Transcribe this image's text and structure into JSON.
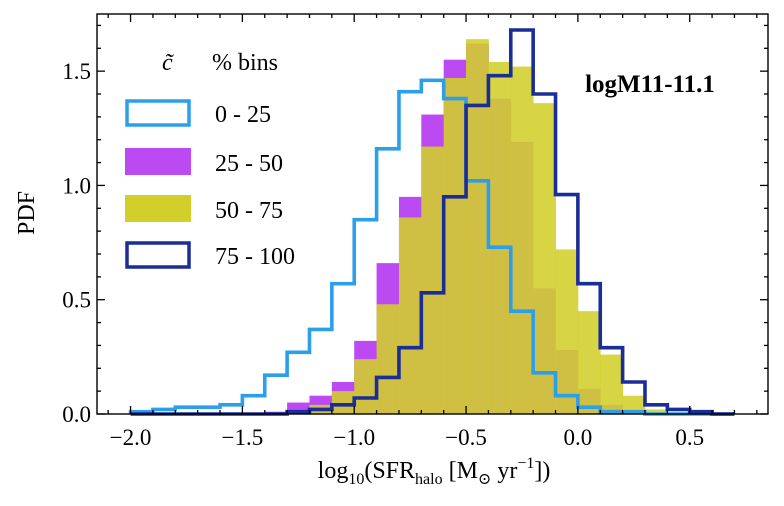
{
  "chart_data": {
    "type": "histogram-step",
    "title": "",
    "xlabel": "log10(SFRhalo [M⊙ yr−1])",
    "xlabel_parts": {
      "prefix": "log",
      "sub10": "10",
      "open": "(SFR",
      "sub_halo": "halo",
      "mid": " [M",
      "sun": "⊙",
      "unit": " yr",
      "exp": "−1",
      "close": "])"
    },
    "ylabel": "PDF",
    "xlim": [
      -2.15,
      0.85
    ],
    "ylim": [
      0.0,
      1.75
    ],
    "xticks": [
      -2.0,
      -1.5,
      -1.0,
      -0.5,
      0.0,
      0.5
    ],
    "xtick_labels": [
      "−2.0",
      "−1.5",
      "−1.0",
      "−0.5",
      "0.0",
      "0.5"
    ],
    "yticks": [
      0.0,
      0.5,
      1.0,
      1.5
    ],
    "ytick_labels": [
      "0.0",
      "0.5",
      "1.0",
      "1.5"
    ],
    "annotation": "logM11-11.1",
    "legend": {
      "title_symbol": "c̃",
      "title_text": "% bins",
      "location": "upper-left",
      "entries": [
        "0 - 25",
        "25 - 50",
        "50 - 75",
        "75 - 100"
      ]
    },
    "bin_edges": [
      -2.0,
      -1.9,
      -1.8,
      -1.7,
      -1.6,
      -1.5,
      -1.4,
      -1.3,
      -1.2,
      -1.1,
      -1.0,
      -0.9,
      -0.8,
      -0.7,
      -0.6,
      -0.5,
      -0.4,
      -0.3,
      -0.2,
      -0.1,
      0.0,
      0.1,
      0.2,
      0.3,
      0.4,
      0.5,
      0.6,
      0.7
    ],
    "series": [
      {
        "name": "0 - 25",
        "style": "step",
        "color": "#2b9fea",
        "values": [
          0.01,
          0.02,
          0.03,
          0.03,
          0.04,
          0.08,
          0.17,
          0.27,
          0.37,
          0.57,
          0.85,
          1.16,
          1.41,
          1.46,
          1.38,
          1.02,
          0.73,
          0.45,
          0.18,
          0.08,
          0.03,
          0.01,
          0.01,
          0,
          0,
          0,
          0
        ]
      },
      {
        "name": "25 - 50",
        "style": "filled",
        "color": "#bb4af2",
        "values": [
          0,
          0,
          0,
          0,
          0,
          0,
          0.01,
          0.05,
          0.08,
          0.14,
          0.32,
          0.66,
          0.95,
          1.31,
          1.55,
          1.62,
          1.38,
          1.19,
          0.55,
          0.28,
          0.11,
          0.04,
          0.01,
          0,
          0,
          0,
          0
        ]
      },
      {
        "name": "50 - 75",
        "style": "filled",
        "color": "#d2cf2a",
        "alpha": 0.88,
        "values": [
          0,
          0,
          0,
          0,
          0,
          0,
          0,
          0.01,
          0.04,
          0.1,
          0.24,
          0.48,
          0.86,
          1.17,
          1.47,
          1.64,
          1.54,
          1.52,
          1.36,
          0.72,
          0.45,
          0.26,
          0.08,
          0.02,
          0,
          0,
          0
        ]
      },
      {
        "name": "75 - 100",
        "style": "step",
        "color": "#1b2d96",
        "values": [
          0,
          0,
          0,
          0,
          0,
          0,
          0,
          0.01,
          0.02,
          0.04,
          0.07,
          0.16,
          0.29,
          0.53,
          0.95,
          1.35,
          1.48,
          1.68,
          1.4,
          0.96,
          0.57,
          0.29,
          0.14,
          0.04,
          0.02,
          0.01,
          0
        ]
      }
    ]
  }
}
